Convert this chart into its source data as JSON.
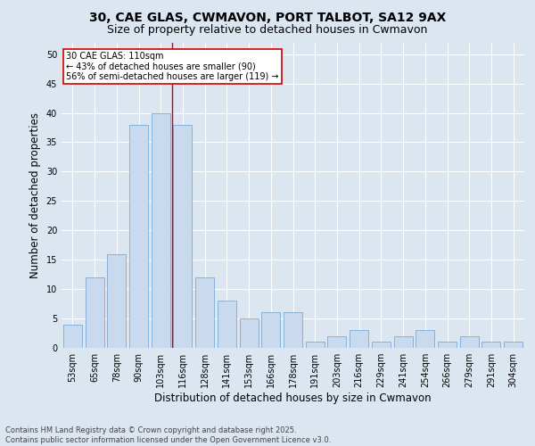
{
  "title_line1": "30, CAE GLAS, CWMAVON, PORT TALBOT, SA12 9AX",
  "title_line2": "Size of property relative to detached houses in Cwmavon",
  "xlabel": "Distribution of detached houses by size in Cwmavon",
  "ylabel": "Number of detached properties",
  "categories": [
    "53sqm",
    "65sqm",
    "78sqm",
    "90sqm",
    "103sqm",
    "116sqm",
    "128sqm",
    "141sqm",
    "153sqm",
    "166sqm",
    "178sqm",
    "191sqm",
    "203sqm",
    "216sqm",
    "229sqm",
    "241sqm",
    "254sqm",
    "266sqm",
    "279sqm",
    "291sqm",
    "304sqm"
  ],
  "values": [
    4,
    12,
    16,
    38,
    40,
    38,
    12,
    8,
    5,
    6,
    6,
    1,
    2,
    3,
    1,
    2,
    3,
    1,
    2,
    1,
    1
  ],
  "bar_color": "#c9d9ee",
  "bar_edge_color": "#6b9fcf",
  "background_color": "#dce6f1",
  "plot_bg_color": "#dce6f1",
  "annotation_text": "30 CAE GLAS: 110sqm\n← 43% of detached houses are smaller (90)\n56% of semi-detached houses are larger (119) →",
  "annotation_box_color": "#ffffff",
  "annotation_box_edge": "#cc0000",
  "vline_x_index": 4.5,
  "vline_color": "#cc0000",
  "ylim": [
    0,
    52
  ],
  "yticks": [
    0,
    5,
    10,
    15,
    20,
    25,
    30,
    35,
    40,
    45,
    50
  ],
  "footnote": "Contains HM Land Registry data © Crown copyright and database right 2025.\nContains public sector information licensed under the Open Government Licence v3.0.",
  "title_fontsize": 10,
  "subtitle_fontsize": 9,
  "tick_fontsize": 7,
  "label_fontsize": 8.5,
  "footnote_fontsize": 6
}
